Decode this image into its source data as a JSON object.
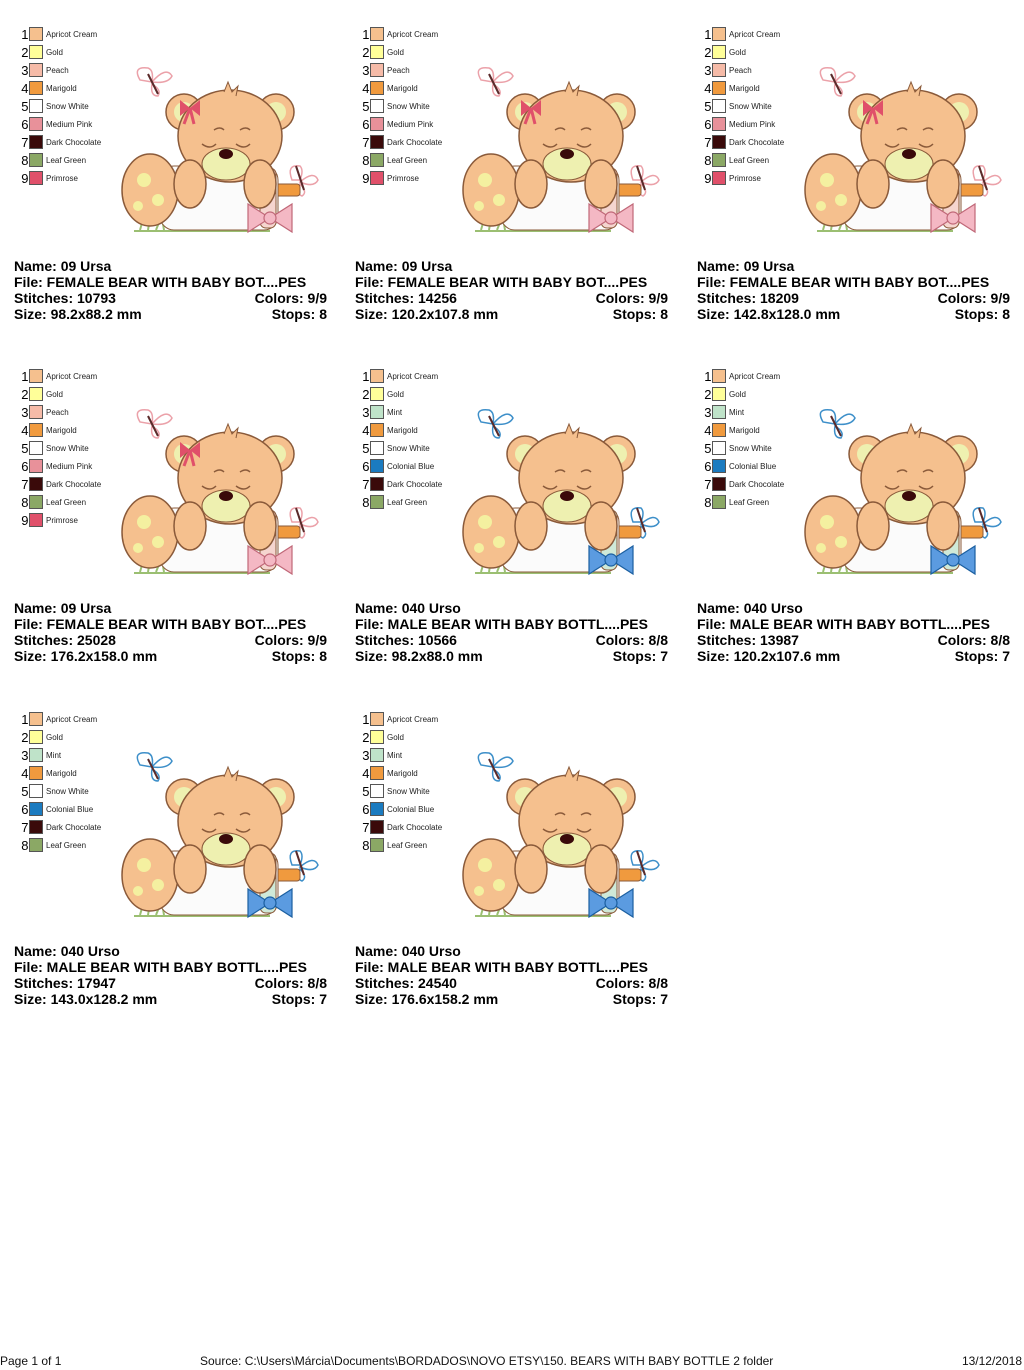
{
  "palette": {
    "Apricot Cream": "#F5C08E",
    "Gold": "#FFFF99",
    "Peach": "#F6BBA8",
    "Marigold": "#F09A3E",
    "Snow White": "#FFFFFF",
    "Medium Pink": "#E8919A",
    "Dark Chocolate": "#3A0A0A",
    "Leaf Green": "#8BA865",
    "Primrose": "#E0506A",
    "Mint": "#BFE3C9",
    "Colonial Blue": "#1B7BC0"
  },
  "labels": {
    "name": "Name:",
    "file": "File:",
    "stitches": "Stitches:",
    "colors": "Colors:",
    "size": "Size:",
    "stops": "Stops:"
  },
  "designs": [
    {
      "name": "09 Ursa",
      "file": "FEMALE BEAR WITH BABY BOT....PES",
      "stitches": "10793",
      "colors": "9/9",
      "size": "98.2x88.2 mm",
      "stops": "8",
      "accent": "#E8919A",
      "bow": "#F4B8C4",
      "threads": [
        "Apricot Cream",
        "Gold",
        "Peach",
        "Marigold",
        "Snow White",
        "Medium Pink",
        "Dark Chocolate",
        "Leaf Green",
        "Primrose"
      ]
    },
    {
      "name": "09 Ursa",
      "file": "FEMALE BEAR WITH BABY BOT....PES",
      "stitches": "14256",
      "colors": "9/9",
      "size": "120.2x107.8 mm",
      "stops": "8",
      "accent": "#E8919A",
      "bow": "#F4B8C4",
      "threads": [
        "Apricot Cream",
        "Gold",
        "Peach",
        "Marigold",
        "Snow White",
        "Medium Pink",
        "Dark Chocolate",
        "Leaf Green",
        "Primrose"
      ]
    },
    {
      "name": "09 Ursa",
      "file": "FEMALE BEAR WITH BABY BOT....PES",
      "stitches": "18209",
      "colors": "9/9",
      "size": "142.8x128.0 mm",
      "stops": "8",
      "accent": "#E8919A",
      "bow": "#F4B8C4",
      "threads": [
        "Apricot Cream",
        "Gold",
        "Peach",
        "Marigold",
        "Snow White",
        "Medium Pink",
        "Dark Chocolate",
        "Leaf Green",
        "Primrose"
      ]
    },
    {
      "name": "09 Ursa",
      "file": "FEMALE BEAR WITH BABY BOT....PES",
      "stitches": "25028",
      "colors": "9/9",
      "size": "176.2x158.0 mm",
      "stops": "8",
      "accent": "#E8919A",
      "bow": "#F4B8C4",
      "threads": [
        "Apricot Cream",
        "Gold",
        "Peach",
        "Marigold",
        "Snow White",
        "Medium Pink",
        "Dark Chocolate",
        "Leaf Green",
        "Primrose"
      ]
    },
    {
      "name": "040 Urso",
      "file": "MALE BEAR WITH BABY BOTTL....PES",
      "stitches": "10566",
      "colors": "8/8",
      "size": "98.2x88.0 mm",
      "stops": "7",
      "accent": "#1B7BC0",
      "bow": "#5B9BE0",
      "threads": [
        "Apricot Cream",
        "Gold",
        "Mint",
        "Marigold",
        "Snow White",
        "Colonial Blue",
        "Dark Chocolate",
        "Leaf Green"
      ]
    },
    {
      "name": "040 Urso",
      "file": "MALE BEAR WITH BABY BOTTL....PES",
      "stitches": "13987",
      "colors": "8/8",
      "size": "120.2x107.6 mm",
      "stops": "7",
      "accent": "#1B7BC0",
      "bow": "#5B9BE0",
      "threads": [
        "Apricot Cream",
        "Gold",
        "Mint",
        "Marigold",
        "Snow White",
        "Colonial Blue",
        "Dark Chocolate",
        "Leaf Green"
      ]
    },
    {
      "name": "040 Urso",
      "file": "MALE BEAR WITH BABY BOTTL....PES",
      "stitches": "17947",
      "colors": "8/8",
      "size": "143.0x128.2 mm",
      "stops": "7",
      "accent": "#1B7BC0",
      "bow": "#5B9BE0",
      "threads": [
        "Apricot Cream",
        "Gold",
        "Mint",
        "Marigold",
        "Snow White",
        "Colonial Blue",
        "Dark Chocolate",
        "Leaf Green"
      ]
    },
    {
      "name": "040 Urso",
      "file": "MALE BEAR WITH BABY BOTTL....PES",
      "stitches": "24540",
      "colors": "8/8",
      "size": "176.6x158.2 mm",
      "stops": "7",
      "accent": "#1B7BC0",
      "bow": "#5B9BE0",
      "threads": [
        "Apricot Cream",
        "Gold",
        "Mint",
        "Marigold",
        "Snow White",
        "Colonial Blue",
        "Dark Chocolate",
        "Leaf Green"
      ]
    }
  ],
  "footer": {
    "page": "Page 1 of 1",
    "source": "Source: C:\\Users\\Márcia\\Documents\\BORDADOS\\NOVO ETSY\\150. BEARS WITH BABY BOTTLE 2 folder",
    "date": "13/12/2018"
  }
}
